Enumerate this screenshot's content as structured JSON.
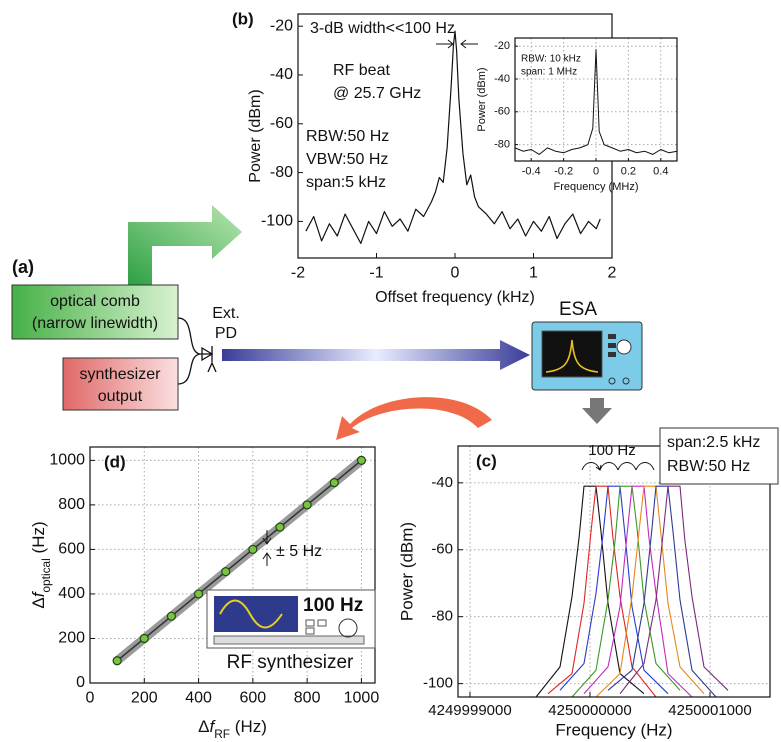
{
  "diagram": {
    "panel_label": "(a)",
    "comb_line1": "optical comb",
    "comb_line2": "(narrow linewidth)",
    "synth_line1": "synthesizer",
    "synth_line2": "output",
    "pd_line1": "Ext.",
    "pd_line2": "PD",
    "esa": "ESA"
  },
  "chart_data": [
    {
      "type": "line",
      "label": "(b)",
      "annotations": [
        "3-dB width<<100 Hz",
        "RF beat",
        "@ 25.7 GHz",
        "RBW:50 Hz",
        "VBW:50 Hz",
        "span:5 kHz"
      ],
      "xlabel": "Offset frequency (kHz)",
      "ylabel": "Power (dBm)",
      "xlim": [
        -2,
        2
      ],
      "ylim": [
        -115,
        -15
      ],
      "xticks": [
        -2,
        -1,
        0,
        1,
        2
      ],
      "yticks": [
        -100,
        -80,
        -60,
        -40,
        -20
      ],
      "grid": false,
      "x": [
        -1.9,
        -1.8,
        -1.7,
        -1.6,
        -1.5,
        -1.4,
        -1.3,
        -1.2,
        -1.1,
        -1.0,
        -0.9,
        -0.8,
        -0.7,
        -0.6,
        -0.5,
        -0.4,
        -0.3,
        -0.25,
        -0.2,
        -0.15,
        -0.1,
        -0.05,
        -0.02,
        0,
        0.02,
        0.05,
        0.1,
        0.15,
        0.2,
        0.25,
        0.3,
        0.4,
        0.5,
        0.6,
        0.7,
        0.8,
        0.9,
        1.0,
        1.1,
        1.2,
        1.3,
        1.4,
        1.5,
        1.6,
        1.7,
        1.8,
        1.85
      ],
      "series": [
        {
          "color": "#111111",
          "values": [
            -104,
            -98,
            -108,
            -101,
            -106,
            -97,
            -103,
            -109,
            -100,
            -105,
            -96,
            -102,
            -99,
            -104,
            -95,
            -98,
            -92,
            -88,
            -82,
            -84,
            -70,
            -45,
            -28,
            -22,
            -30,
            -50,
            -72,
            -85,
            -81,
            -90,
            -94,
            -97,
            -101,
            -96,
            -103,
            -99,
            -106,
            -100,
            -104,
            -98,
            -107,
            -101,
            -97,
            -105,
            -100,
            -103,
            -99
          ]
        }
      ]
    },
    {
      "type": "line",
      "annotations": [
        "RBW: 10 kHz",
        "span: 1 MHz"
      ],
      "xlabel": "Frequency (MHz)",
      "ylabel": "Power (dBm)",
      "xlim": [
        -0.5,
        0.5
      ],
      "ylim": [
        -90,
        -15
      ],
      "xticks": [
        -0.4,
        -0.2,
        0.0,
        0.2,
        0.4
      ],
      "yticks": [
        -80,
        -60,
        -40,
        -20
      ],
      "grid": true,
      "x": [
        -0.5,
        -0.45,
        -0.4,
        -0.35,
        -0.3,
        -0.25,
        -0.2,
        -0.15,
        -0.1,
        -0.05,
        -0.02,
        0,
        0.02,
        0.05,
        0.1,
        0.15,
        0.2,
        0.25,
        0.3,
        0.35,
        0.4,
        0.45,
        0.5
      ],
      "series": [
        {
          "color": "#111111",
          "values": [
            -82,
            -84,
            -83,
            -86,
            -82,
            -84,
            -85,
            -83,
            -82,
            -80,
            -70,
            -22,
            -72,
            -80,
            -82,
            -84,
            -83,
            -85,
            -84,
            -86,
            -83,
            -85,
            -84
          ]
        }
      ]
    },
    {
      "type": "scatter",
      "label": "(d)",
      "annotations": [
        "± 5 Hz",
        "100 Hz",
        "RF synthesizer"
      ],
      "xlabel": [
        "Δ",
        "f",
        "RF",
        " (Hz)"
      ],
      "ylabel": [
        "Δ",
        "f",
        "optical",
        " (Hz)"
      ],
      "xlim": [
        0,
        1050
      ],
      "ylim": [
        0,
        1060
      ],
      "xticks": [
        0,
        200,
        400,
        600,
        800,
        1000
      ],
      "yticks": [
        0,
        200,
        400,
        600,
        800,
        1000
      ],
      "grid": true,
      "x": [
        100,
        200,
        300,
        400,
        500,
        600,
        700,
        800,
        900,
        1000
      ],
      "series": [
        {
          "color": "#7cc242",
          "values": [
            100,
            200,
            300,
            400,
            500,
            600,
            700,
            800,
            900,
            1000
          ]
        }
      ]
    },
    {
      "type": "line",
      "label": "(c)",
      "annotations": [
        "100 Hz",
        "span:2.5 kHz",
        "RBW:50 Hz"
      ],
      "xlabel": "Frequency (Hz)",
      "ylabel": "Power (dBm)",
      "xlim": [
        4249998900,
        4250001500
      ],
      "ylim": [
        -104,
        -29
      ],
      "xticks": [
        4249999000,
        4250000000,
        4250001000
      ],
      "yticks": [
        -100,
        -80,
        -60,
        -40
      ],
      "grid": true,
      "series": [
        {
          "color": "#111111",
          "x": [
            4249999550,
            4249999750,
            4249999850,
            4249999910,
            4249999950,
            4250000050,
            4250000090,
            4250000150,
            4250000250,
            4250000450
          ],
          "values": [
            -104,
            -95,
            -74,
            -56,
            -41,
            -41,
            -54,
            -76,
            -97,
            -103
          ]
        },
        {
          "color": "#e02424",
          "x": [
            4249999650,
            4249999850,
            4249999950,
            4250000010,
            4250000050,
            4250000150,
            4250000190,
            4250000250,
            4250000350,
            4250000550
          ],
          "values": [
            -103,
            -97,
            -76,
            -54,
            -41,
            -41,
            -56,
            -74,
            -95,
            -104
          ]
        },
        {
          "color": "#2a3cc8",
          "x": [
            4249999750,
            4249999950,
            4250000050,
            4250000110,
            4250000150,
            4250000250,
            4250000290,
            4250000350,
            4250000450,
            4250000650
          ],
          "values": [
            -102,
            -94,
            -73,
            -55,
            -41,
            -41,
            -55,
            -77,
            -96,
            -103
          ]
        },
        {
          "color": "#3a9a22",
          "x": [
            4249999850,
            4250000050,
            4250000150,
            4250000210,
            4250000250,
            4250000350,
            4250000390,
            4250000450,
            4250000550,
            4250000750
          ],
          "values": [
            -104,
            -96,
            -75,
            -57,
            -41,
            -41,
            -53,
            -75,
            -94,
            -102
          ]
        },
        {
          "color": "#c428c4",
          "x": [
            4249999950,
            4250000150,
            4250000250,
            4250000310,
            4250000350,
            4250000450,
            4250000490,
            4250000550,
            4250000650,
            4250000850
          ],
          "values": [
            -103,
            -95,
            -77,
            -55,
            -41,
            -41,
            -56,
            -73,
            -97,
            -104
          ]
        },
        {
          "color": "#e8861e",
          "x": [
            4250000050,
            4250000250,
            4250000350,
            4250000410,
            4250000450,
            4250000550,
            4250000590,
            4250000650,
            4250000750,
            4250000950
          ],
          "values": [
            -104,
            -97,
            -74,
            -54,
            -41,
            -41,
            -55,
            -76,
            -95,
            -103
          ]
        },
        {
          "color": "#2e3a94",
          "x": [
            4250000150,
            4250000350,
            4250000450,
            4250000510,
            4250000550,
            4250000650,
            4250000690,
            4250000750,
            4250000850,
            4250001050
          ],
          "values": [
            -102,
            -96,
            -76,
            -56,
            -41,
            -41,
            -54,
            -75,
            -96,
            -104
          ]
        },
        {
          "color": "#7a2a7a",
          "x": [
            4250000250,
            4250000450,
            4250000550,
            4250000610,
            4250000650,
            4250000750,
            4250000790,
            4250000850,
            4250000950,
            4250001150
          ],
          "values": [
            -103,
            -94,
            -75,
            -55,
            -41,
            -41,
            -57,
            -74,
            -95,
            -102
          ]
        }
      ]
    }
  ]
}
